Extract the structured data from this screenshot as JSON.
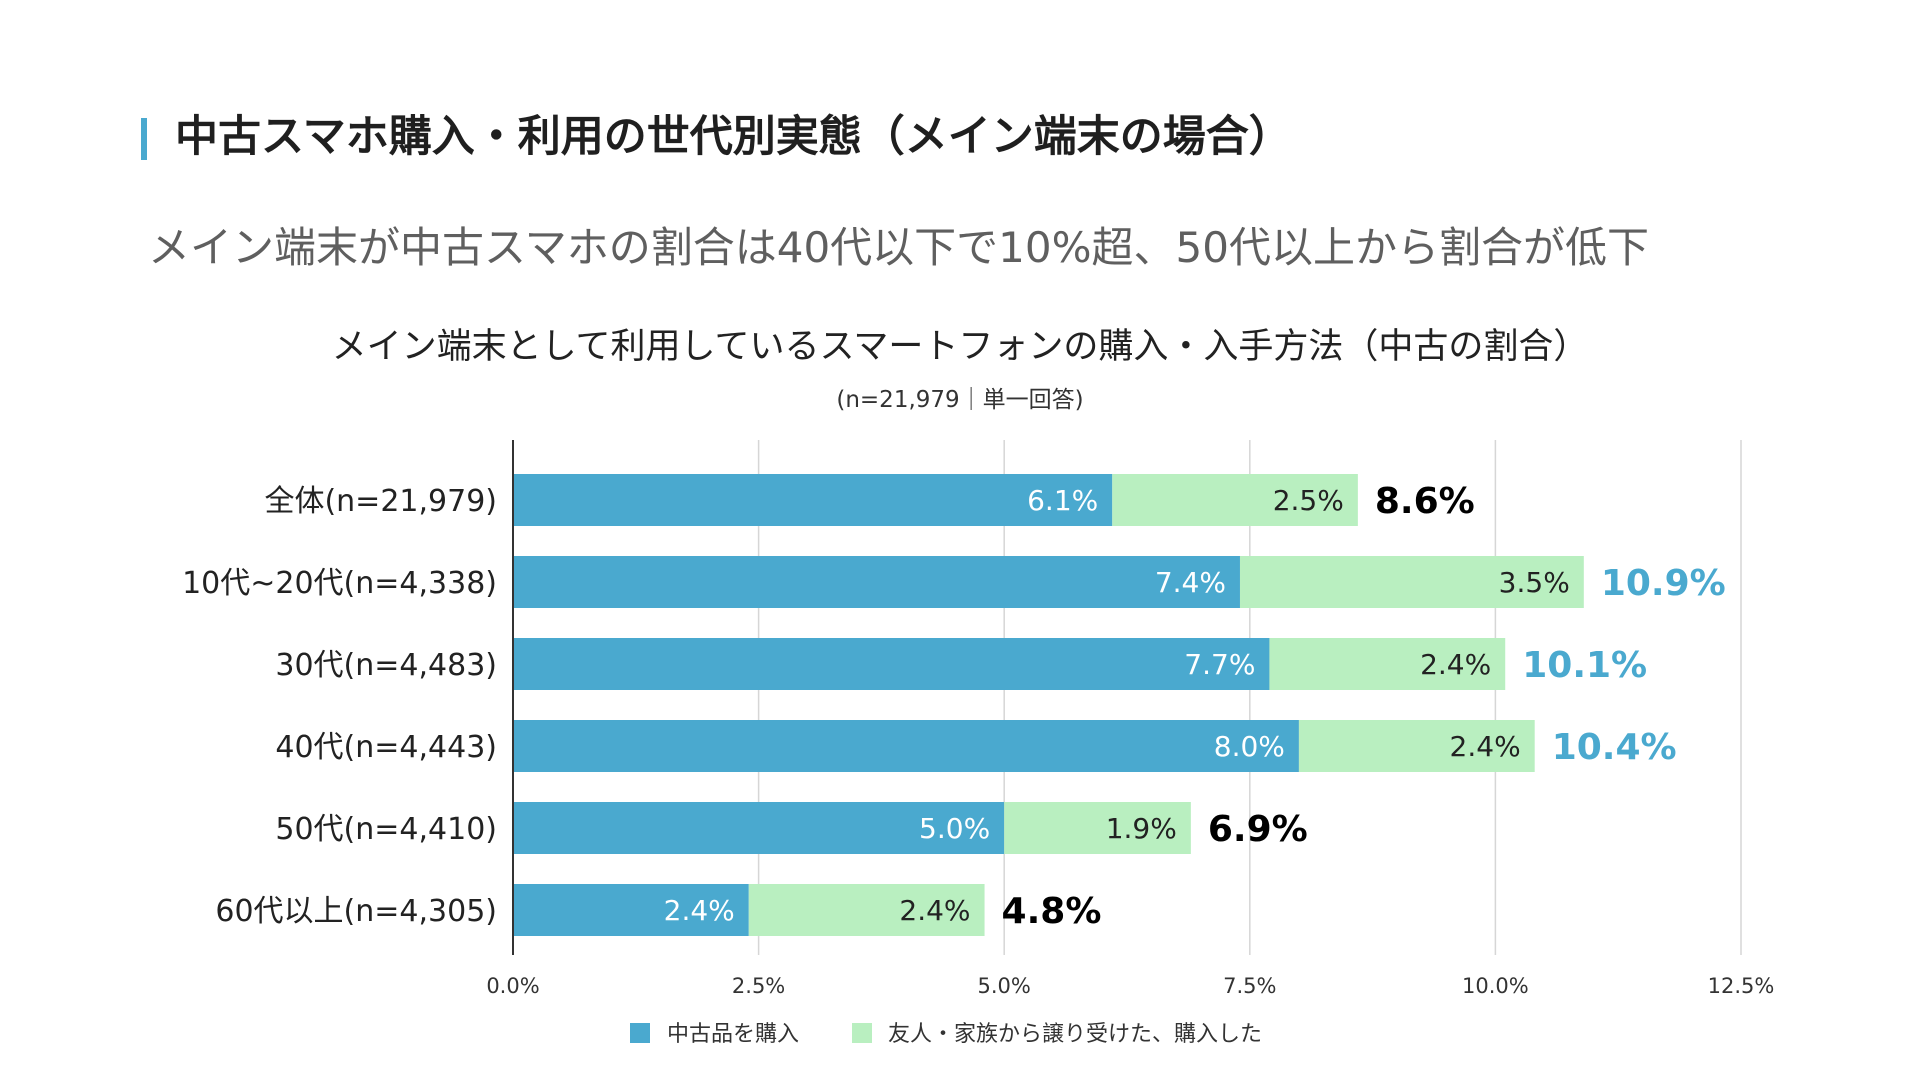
{
  "header": {
    "title": "中古スマホ購入・利用の世代別実態（メイン端末の場合）",
    "subtitle": "メイン端末が中古スマホの割合は40代以下で10%超、50代以上から割合が低下"
  },
  "colors": {
    "accent": "#4aa9cf",
    "bar_primary": "#4aa9cf",
    "bar_secondary": "#b9efc0",
    "highlight_total": "#4aa9cf",
    "normal_total": "#000000"
  },
  "chart_data": {
    "type": "bar",
    "orientation": "horizontal",
    "stacked": true,
    "title": "メイン端末として利用しているスマートフォンの購入・入手方法（中古の割合）",
    "subtitle": "(n=21,979｜単一回答)",
    "categories": [
      "全体(n=21,979)",
      "10代~20代(n=4,338)",
      "30代(n=4,483)",
      "40代(n=4,443)",
      "50代(n=4,410)",
      "60代以上(n=4,305)"
    ],
    "series": [
      {
        "name": "中古品を購入",
        "values": [
          6.1,
          7.4,
          7.7,
          8.0,
          5.0,
          2.4
        ],
        "labels": [
          "6.1%",
          "7.4%",
          "7.7%",
          "8.0%",
          "5.0%",
          "2.4%"
        ]
      },
      {
        "name": "友人・家族から譲り受けた、購入した",
        "values": [
          2.5,
          3.5,
          2.4,
          2.4,
          1.9,
          2.4
        ],
        "labels": [
          "2.5%",
          "3.5%",
          "2.4%",
          "2.4%",
          "1.9%",
          "2.4%"
        ]
      }
    ],
    "totals": [
      8.6,
      10.9,
      10.1,
      10.4,
      6.9,
      4.8
    ],
    "total_labels": [
      "8.6%",
      "10.9%",
      "10.1%",
      "10.4%",
      "6.9%",
      "4.8%"
    ],
    "total_highlight": [
      false,
      true,
      true,
      true,
      false,
      false
    ],
    "xlim": [
      0,
      12.5
    ],
    "xticks": [
      0,
      2.5,
      5,
      7.5,
      10,
      12.5
    ],
    "xtick_labels": [
      "0.0%",
      "2.5%",
      "5.0%",
      "7.5%",
      "10.0%",
      "12.5%"
    ],
    "grid": true,
    "legend_position": "bottom"
  }
}
